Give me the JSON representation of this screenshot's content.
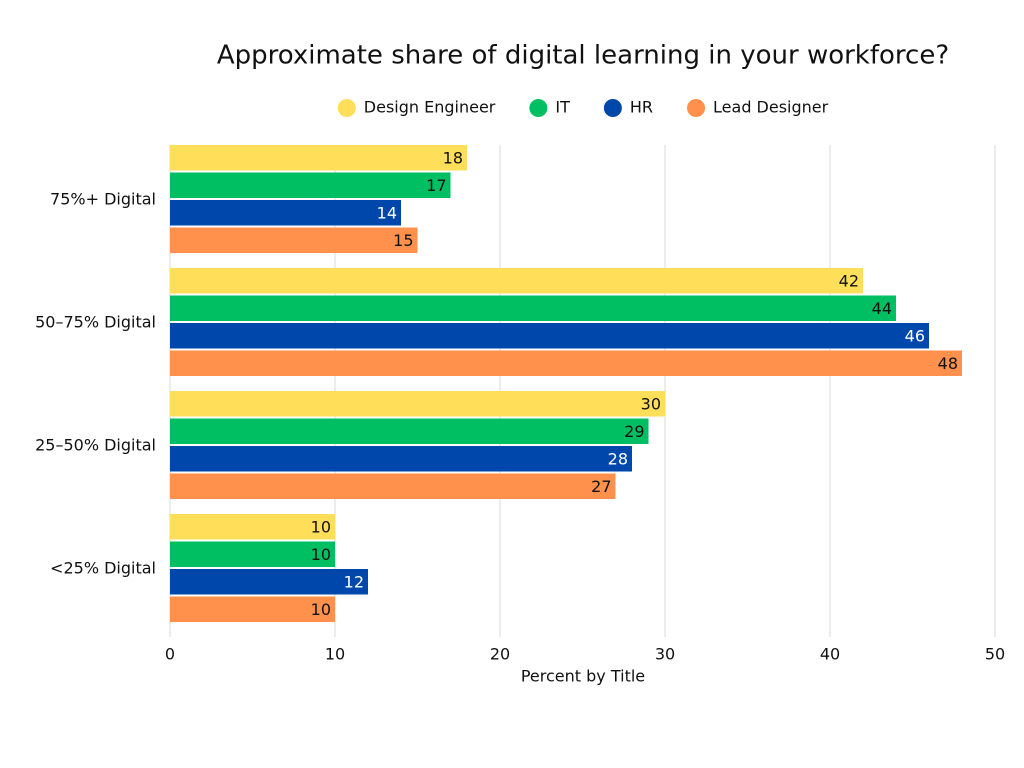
{
  "chart_data": {
    "type": "hbar",
    "title": "Approximate share of digital learning in your workforce?",
    "x_label": "Percent by Title",
    "categories": [
      "75%+ Digital",
      "50–75% Digital",
      "25–50% Digital",
      "<25% Digital"
    ],
    "series": [
      {
        "name": "Design Engineer",
        "color": "#FFDF5A",
        "values": [
          18,
          42,
          30,
          10
        ]
      },
      {
        "name": "IT",
        "color": "#00BF63",
        "values": [
          17,
          44,
          29,
          10
        ]
      },
      {
        "name": "HR",
        "color": "#0047AB",
        "values": [
          14,
          46,
          28,
          12
        ]
      },
      {
        "name": "Lead Designer",
        "color": "#FF914D",
        "values": [
          15,
          48,
          27,
          10
        ]
      }
    ],
    "xlim": [
      0,
      50
    ],
    "xticks": [
      0,
      10,
      20,
      30,
      40,
      50
    ],
    "grid": true,
    "legend": "top"
  }
}
